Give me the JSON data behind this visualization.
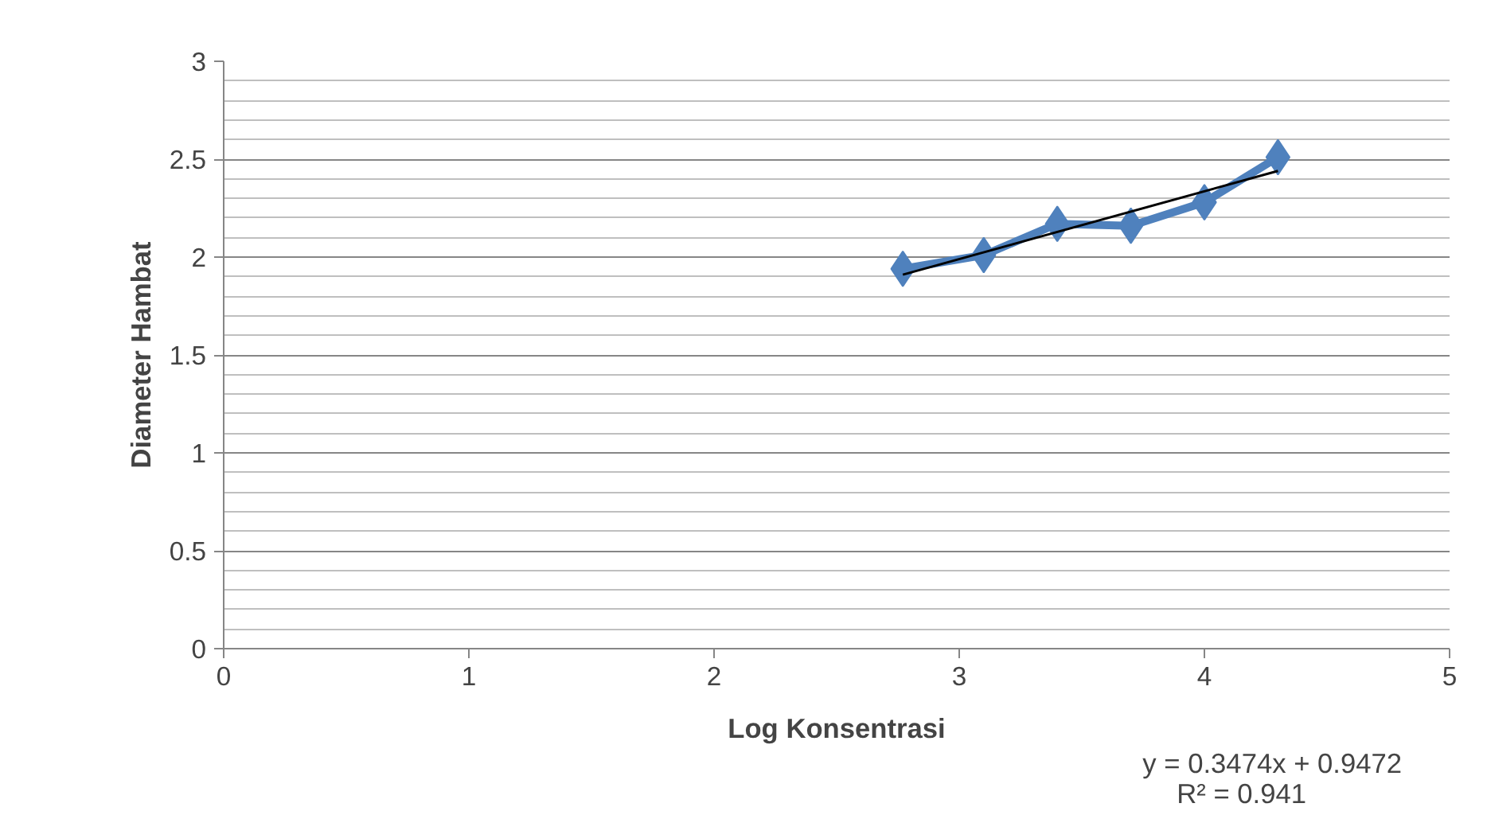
{
  "chart_data": {
    "type": "line",
    "xlabel": "Log Konsentrasi",
    "ylabel": "Diameter Hambat",
    "xlim": [
      0,
      5
    ],
    "xticks": [
      0,
      1,
      2,
      3,
      4,
      5
    ],
    "ylim": [
      0,
      3
    ],
    "yticks": [
      0,
      0.5,
      1,
      1.5,
      2,
      2.5,
      3
    ],
    "grid": "y",
    "marker": "diamond",
    "series": [
      {
        "color": "#4f81bd",
        "x": [
          2.77,
          3.1,
          3.4,
          3.7,
          4.0,
          4.3
        ],
        "values": [
          1.94,
          2.01,
          2.17,
          2.16,
          2.28,
          2.51
        ]
      },
      {
        "type": "line",
        "color": "#000000",
        "marker": "none",
        "x": [
          2.77,
          4.3
        ],
        "values": [
          1.91,
          2.44
        ]
      }
    ],
    "annotations": [
      "y = 0.3474x + 0.9472",
      "R² = 0.941"
    ]
  }
}
